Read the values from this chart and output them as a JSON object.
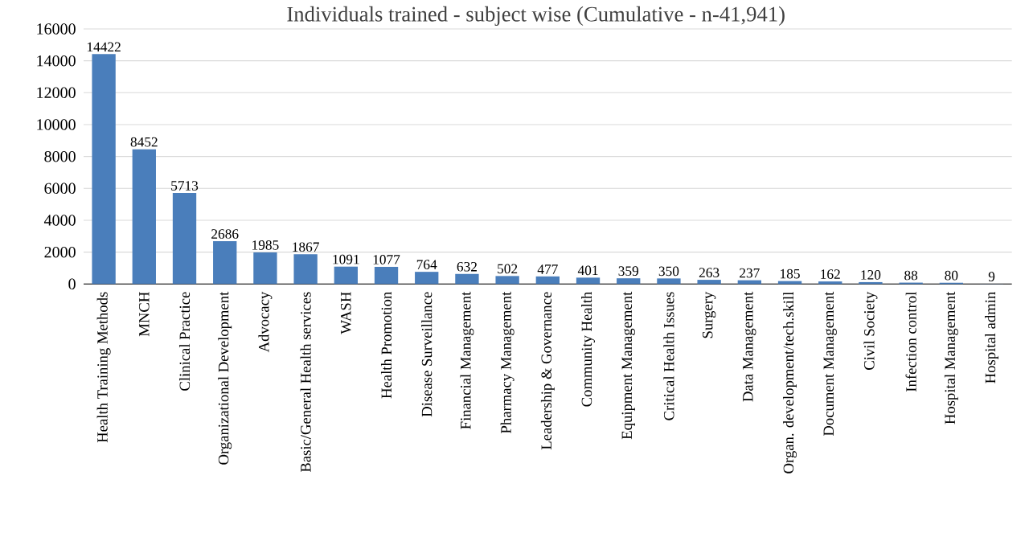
{
  "chart_data": {
    "type": "bar",
    "title": "Individuals trained - subject wise (Cumulative - n-41,941)",
    "categories": [
      "Health Training Methods",
      "MNCH",
      "Clinical Practice",
      "Organizational Development",
      "Advocacy",
      "Basic/General Health services",
      "WASH",
      "Health Promotion",
      "Disease Surveillance",
      "Financial Management",
      "Pharmacy Management",
      "Leadership & Governance",
      "Community Health",
      "Equipment Management",
      "Critical Health Issues",
      "Surgery",
      "Data Management",
      "Organ. development/tech.skill",
      "Document Management",
      "Civil Society",
      "Infection control",
      "Hospital Management",
      "Hospital admin"
    ],
    "values": [
      14422,
      8452,
      5713,
      2686,
      1985,
      1867,
      1091,
      1077,
      764,
      632,
      502,
      477,
      401,
      359,
      350,
      263,
      237,
      185,
      162,
      120,
      88,
      80,
      9
    ],
    "color": "#4a7ebb",
    "ylim": [
      0,
      16000
    ],
    "yticks": [
      0,
      2000,
      4000,
      6000,
      8000,
      10000,
      12000,
      14000,
      16000
    ],
    "grid": "y",
    "data_labels": true
  }
}
